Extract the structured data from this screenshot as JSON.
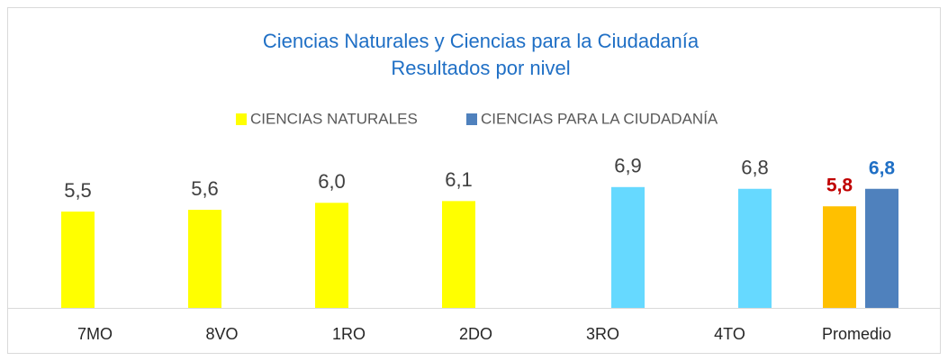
{
  "chart_data": {
    "type": "bar",
    "title": [
      "Ciencias Naturales y Ciencias para la Ciudadanía",
      "Resultados por nivel"
    ],
    "categories": [
      "7MO",
      "8VO",
      "1RO",
      "2DO",
      "3RO",
      "4TO",
      "Promedio"
    ],
    "series": [
      {
        "name": "CIENCIAS NATURALES",
        "color": "#FFFF00",
        "values": [
          5.5,
          5.6,
          6.0,
          6.1,
          null,
          null,
          5.8
        ],
        "value_labels": [
          "5,5",
          "5,6",
          "6,0",
          "6,1",
          null,
          null,
          "5,8"
        ],
        "colors": [
          "#FFFF00",
          "#FFFF00",
          "#FFFF00",
          "#FFFF00",
          null,
          null,
          "#FFC000"
        ],
        "value_label_colors": [
          "#404040",
          "#404040",
          "#404040",
          "#404040",
          null,
          null,
          "#C00000"
        ]
      },
      {
        "name": "CIENCIAS PARA LA CIUDADANÍA",
        "color": "#4F81BD",
        "values": [
          null,
          null,
          null,
          null,
          6.9,
          6.8,
          6.8
        ],
        "value_labels": [
          null,
          null,
          null,
          null,
          "6,9",
          "6,8",
          "6,8"
        ],
        "colors": [
          null,
          null,
          null,
          null,
          "#66D9FF",
          "#66D9FF",
          "#4F81BD"
        ],
        "value_label_colors": [
          null,
          null,
          null,
          null,
          "#404040",
          "#404040",
          "#1F6FC5"
        ]
      }
    ],
    "legend": "top"
  }
}
